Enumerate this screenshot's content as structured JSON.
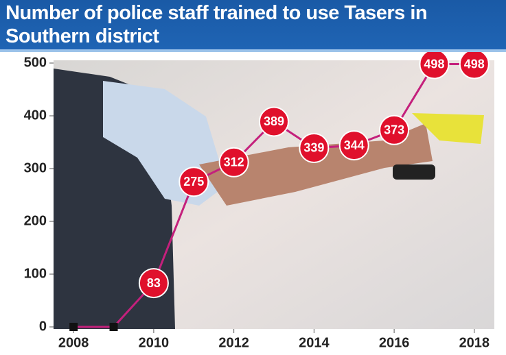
{
  "chart_data": {
    "type": "line",
    "title": "Number of police staff trained to use Tasers in Southern district",
    "x": [
      2008,
      2009,
      2010,
      2011,
      2012,
      2013,
      2014,
      2015,
      2016,
      2017,
      2018
    ],
    "series": [
      {
        "color": "#c4207c",
        "values": [
          0,
          0,
          83,
          275,
          312,
          389,
          339,
          344,
          373,
          498,
          498
        ]
      }
    ],
    "xlim": [
      2007.5,
      2018.5
    ],
    "xticks": [
      2008,
      2010,
      2012,
      2014,
      2016,
      2018
    ],
    "ylim": [
      0,
      500
    ],
    "yticks": [
      0,
      100,
      200,
      300,
      400,
      500
    ],
    "marker_color": "#e0102c"
  }
}
